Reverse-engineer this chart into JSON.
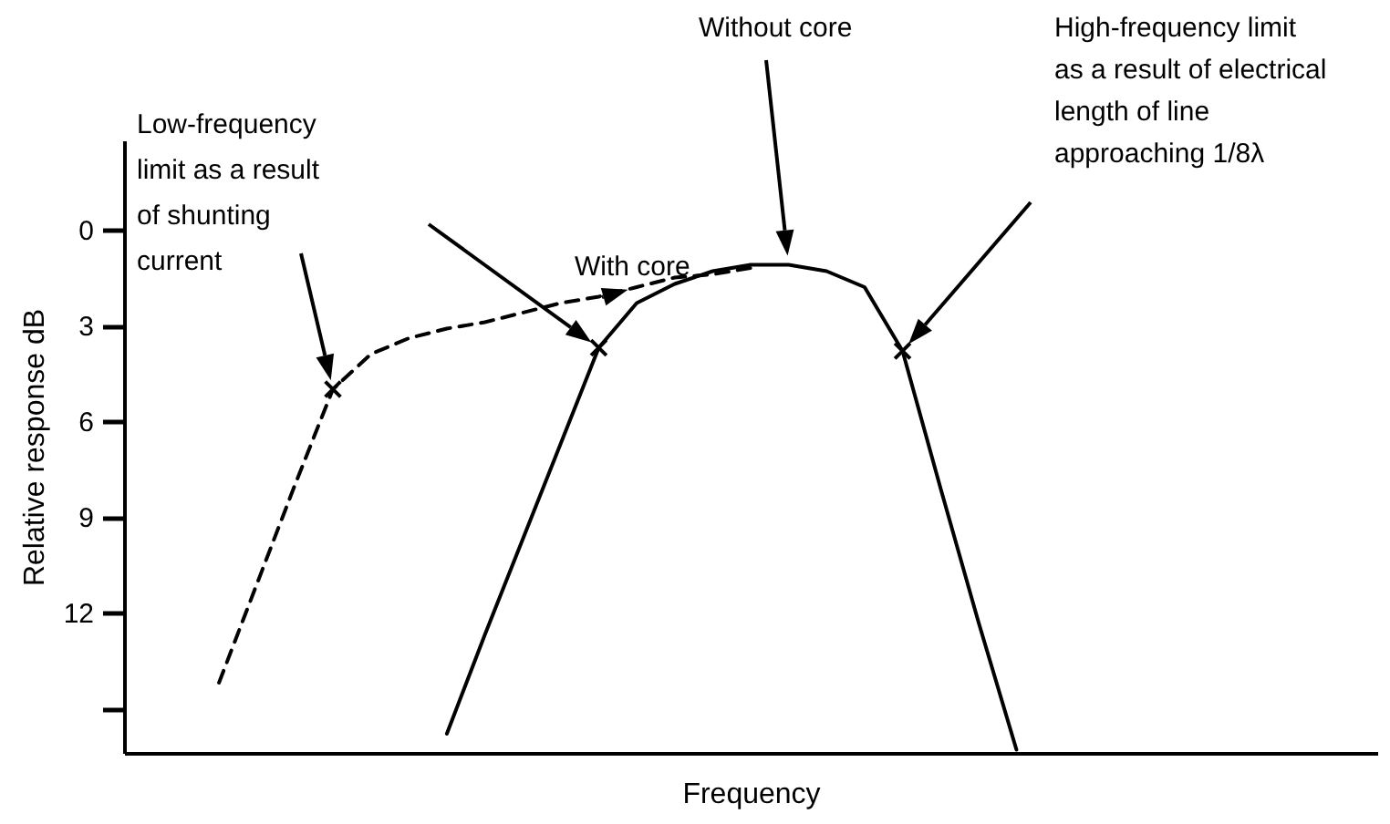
{
  "chart_data": {
    "type": "line",
    "xlabel": "Frequency",
    "ylabel": "Relative response dB",
    "categories": [
      null,
      null,
      null,
      null,
      null,
      null,
      null,
      null,
      null,
      null,
      null,
      null,
      null,
      null,
      null,
      null,
      null,
      null,
      null,
      null,
      null,
      null,
      null,
      null,
      null,
      null,
      null,
      null,
      null,
      null,
      null,
      null,
      null
    ],
    "ylim": [
      16.4,
      -2.8
    ],
    "yticks": [
      0,
      3,
      6,
      9,
      12,
      {
        "value": 15,
        "label": null
      }
    ],
    "tick_labels": "y",
    "series": [
      {
        "type": "line",
        "color": "#000000",
        "line_style": "dashed",
        "values": [
          null,
          null,
          14.2,
          11.1,
          8.0,
          5.0,
          3.9,
          3.4,
          3.1,
          2.9,
          2.6,
          2.3,
          2.1,
          1.8,
          1.5,
          1.4,
          1.2,
          null,
          null,
          null,
          null,
          null,
          null,
          null,
          null,
          null,
          null,
          null,
          null,
          null,
          null,
          null,
          null
        ]
      },
      {
        "type": "line",
        "color": "#000000",
        "line_style": "solid",
        "values": [
          null,
          null,
          null,
          null,
          null,
          null,
          null,
          null,
          15.8,
          12.7,
          9.7,
          6.7,
          3.7,
          2.3,
          1.7,
          1.3,
          1.1,
          1.1,
          1.3,
          1.8,
          3.8,
          8.1,
          12.3,
          16.3,
          null,
          null,
          null,
          null,
          null,
          null,
          null,
          null,
          null
        ]
      },
      {
        "type": "scatter",
        "color": "#000000",
        "marker": "cross",
        "values": [
          null,
          null,
          null,
          null,
          null,
          5.0,
          null,
          null,
          null,
          null,
          null,
          null,
          3.7,
          null,
          null,
          null,
          null,
          null,
          null,
          null,
          3.8,
          null,
          null,
          null,
          null,
          null,
          null,
          null,
          null,
          null,
          null,
          null,
          null
        ]
      }
    ],
    "annotations": [
      "Low-frequency\nlimit as a result\nof shunting\ncurrent",
      "With core",
      "Without core",
      "High-frequency limit\nas a result of electrical\nlength of line\napproaching 1/8λ"
    ]
  }
}
